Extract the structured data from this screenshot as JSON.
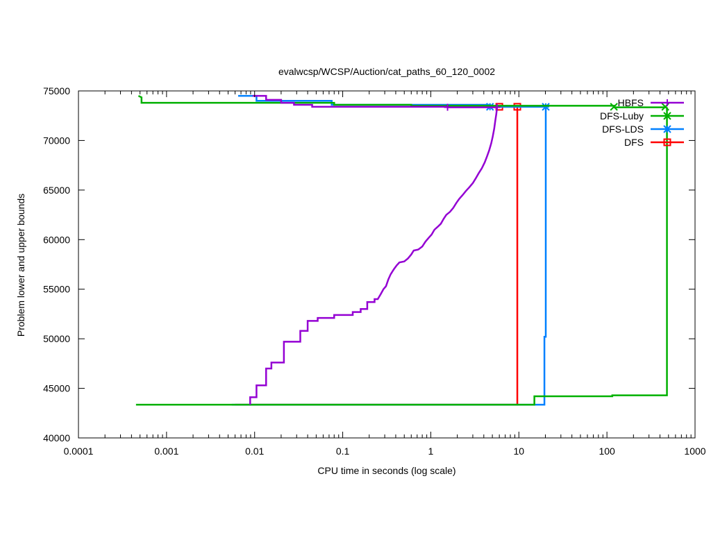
{
  "chart_data": {
    "type": "line",
    "title": "evalwcsp/WCSP/Auction/cat_paths_60_120_0002",
    "xlabel": "CPU time in seconds (log scale)",
    "ylabel": "Problem lower and upper bounds",
    "x_scale": "log",
    "xlim": [
      0.0001,
      1000
    ],
    "ylim": [
      40000,
      75000
    ],
    "x_ticks": [
      0.0001,
      0.001,
      0.01,
      0.1,
      1,
      10,
      100,
      1000
    ],
    "x_tick_labels": [
      "0.0001",
      "0.001",
      "0.01",
      "0.1",
      "1",
      "10",
      "100",
      "1000"
    ],
    "y_ticks": [
      40000,
      45000,
      50000,
      55000,
      60000,
      65000,
      70000,
      75000
    ],
    "y_tick_labels": [
      "40000",
      "45000",
      "50000",
      "55000",
      "60000",
      "65000",
      "70000",
      "75000"
    ],
    "grid": false,
    "legend_position": "top-right",
    "series": [
      {
        "name": "HBFS",
        "color": "#9400d3",
        "marker": "plus",
        "lower": [
          [
            0.0089,
            43350
          ],
          [
            0.0089,
            44100
          ],
          [
            0.0105,
            44100
          ],
          [
            0.0105,
            45300
          ],
          [
            0.0135,
            45300
          ],
          [
            0.0135,
            47000
          ],
          [
            0.0155,
            47000
          ],
          [
            0.0155,
            47600
          ],
          [
            0.0215,
            47600
          ],
          [
            0.0215,
            49700
          ],
          [
            0.033,
            49700
          ],
          [
            0.033,
            50800
          ],
          [
            0.04,
            50800
          ],
          [
            0.04,
            51800
          ],
          [
            0.052,
            51800
          ],
          [
            0.052,
            52100
          ],
          [
            0.08,
            52100
          ],
          [
            0.08,
            52400
          ],
          [
            0.13,
            52400
          ],
          [
            0.13,
            52700
          ],
          [
            0.16,
            52700
          ],
          [
            0.16,
            53000
          ],
          [
            0.19,
            53000
          ],
          [
            0.19,
            53700
          ],
          [
            0.23,
            53700
          ],
          [
            0.23,
            54000
          ],
          [
            0.25,
            54000
          ],
          [
            0.27,
            54500
          ],
          [
            0.29,
            55000
          ],
          [
            0.31,
            55300
          ],
          [
            0.33,
            56000
          ],
          [
            0.35,
            56500
          ],
          [
            0.38,
            57000
          ],
          [
            0.41,
            57400
          ],
          [
            0.44,
            57700
          ],
          [
            0.5,
            57800
          ],
          [
            0.55,
            58100
          ],
          [
            0.6,
            58500
          ],
          [
            0.64,
            58900
          ],
          [
            0.72,
            59000
          ],
          [
            0.8,
            59300
          ],
          [
            0.87,
            59800
          ],
          [
            0.95,
            60200
          ],
          [
            1.02,
            60500
          ],
          [
            1.1,
            61000
          ],
          [
            1.2,
            61300
          ],
          [
            1.3,
            61600
          ],
          [
            1.4,
            62100
          ],
          [
            1.5,
            62500
          ],
          [
            1.65,
            62800
          ],
          [
            1.8,
            63200
          ],
          [
            1.95,
            63700
          ],
          [
            2.1,
            64100
          ],
          [
            2.3,
            64500
          ],
          [
            2.5,
            64900
          ],
          [
            2.75,
            65300
          ],
          [
            3.0,
            65700
          ],
          [
            3.25,
            66200
          ],
          [
            3.5,
            66700
          ],
          [
            3.8,
            67200
          ],
          [
            4.1,
            67800
          ],
          [
            4.35,
            68400
          ],
          [
            4.6,
            69000
          ],
          [
            4.85,
            69700
          ],
          [
            5.05,
            70400
          ],
          [
            5.25,
            71200
          ],
          [
            5.4,
            72000
          ],
          [
            5.55,
            72700
          ],
          [
            5.65,
            73350
          ]
        ],
        "upper": [
          [
            0.0095,
            74500
          ],
          [
            0.0135,
            74500
          ],
          [
            0.0135,
            74100
          ],
          [
            0.02,
            74100
          ],
          [
            0.02,
            73800
          ],
          [
            0.028,
            73800
          ],
          [
            0.028,
            73600
          ],
          [
            0.045,
            73600
          ],
          [
            0.045,
            73400
          ],
          [
            1.5,
            73400
          ],
          [
            1.6,
            73350
          ],
          [
            5.65,
            73350
          ]
        ],
        "markers": [
          [
            1.55,
            73350
          ],
          [
            5.65,
            73350
          ]
        ]
      },
      {
        "name": "DFS-Luby",
        "color": "#00b000",
        "marker": "x",
        "lower": [
          [
            0.00045,
            43350
          ],
          [
            15.0,
            43350
          ],
          [
            15.0,
            44200
          ],
          [
            115,
            44200
          ],
          [
            115,
            44300
          ],
          [
            480,
            44300
          ],
          [
            480,
            73350
          ]
        ],
        "upper": [
          [
            0.00048,
            74500
          ],
          [
            0.00052,
            74350
          ],
          [
            0.00052,
            73800
          ],
          [
            0.08,
            73800
          ],
          [
            0.08,
            73600
          ],
          [
            0.6,
            73600
          ],
          [
            0.6,
            73500
          ],
          [
            120,
            73500
          ],
          [
            120,
            73350
          ],
          [
            480,
            73350
          ]
        ],
        "markers": [
          [
            120,
            73400
          ],
          [
            460,
            73400
          ]
        ]
      },
      {
        "name": "DFS-LDS",
        "color": "#0080ff",
        "marker": "star",
        "lower": [
          [
            0.0055,
            43350
          ],
          [
            19.5,
            43350
          ],
          [
            19.5,
            50200
          ],
          [
            20.2,
            50200
          ],
          [
            20.2,
            73350
          ]
        ],
        "upper": [
          [
            0.0065,
            74500
          ],
          [
            0.0105,
            74500
          ],
          [
            0.0105,
            74000
          ],
          [
            0.075,
            74000
          ],
          [
            0.075,
            73600
          ],
          [
            4.7,
            73600
          ],
          [
            4.7,
            73400
          ],
          [
            20.2,
            73400
          ]
        ],
        "markers": [
          [
            4.7,
            73400
          ],
          [
            20.2,
            73400
          ]
        ]
      },
      {
        "name": "DFS",
        "color": "#ff0000",
        "marker": "square",
        "lower": [
          [
            0.006,
            43350
          ],
          [
            9.6,
            43350
          ],
          [
            9.6,
            73400
          ]
        ],
        "upper": [
          [
            6.0,
            73400
          ],
          [
            9.6,
            73400
          ]
        ],
        "markers": [
          [
            6.0,
            73400
          ],
          [
            9.6,
            73400
          ]
        ]
      }
    ]
  }
}
